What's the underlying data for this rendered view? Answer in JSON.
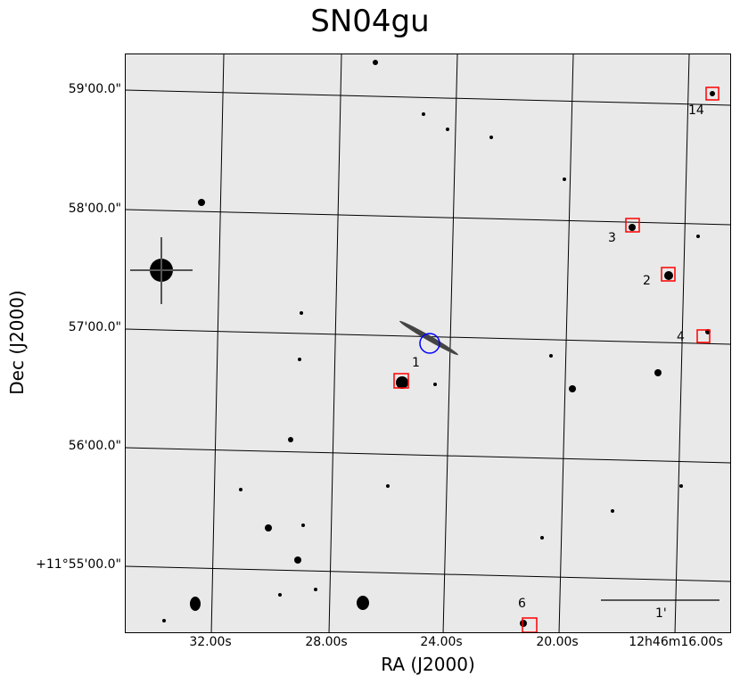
{
  "title": "SN04gu",
  "x_axis": {
    "label": "RA (J2000)",
    "ticks": [
      "32.00s",
      "28.00s",
      "24.00s",
      "20.00s",
      "12h46m16.00s"
    ]
  },
  "y_axis": {
    "label": "Dec (J2000)",
    "ticks": [
      "59'00.0\"",
      "58'00.0\"",
      "57'00.0\"",
      "56'00.0\"",
      "+11°55'00.0\""
    ]
  },
  "markers": [
    {
      "label": "14",
      "shape": "square",
      "color": "#ff0000"
    },
    {
      "label": "3",
      "shape": "square",
      "color": "#ff0000"
    },
    {
      "label": "2",
      "shape": "square",
      "color": "#ff0000"
    },
    {
      "label": "4",
      "shape": "square",
      "color": "#ff0000"
    },
    {
      "label": "1",
      "shape": "circle",
      "color": "#0000ff"
    },
    {
      "label": "6",
      "shape": "square",
      "color": "#ff0000"
    }
  ],
  "scale_bar": {
    "label": "1'"
  },
  "colors": {
    "background": "#e9e9e9",
    "stars": "#000000",
    "grid": "#000000",
    "target": "#0000ff",
    "reference": "#ff0000"
  }
}
